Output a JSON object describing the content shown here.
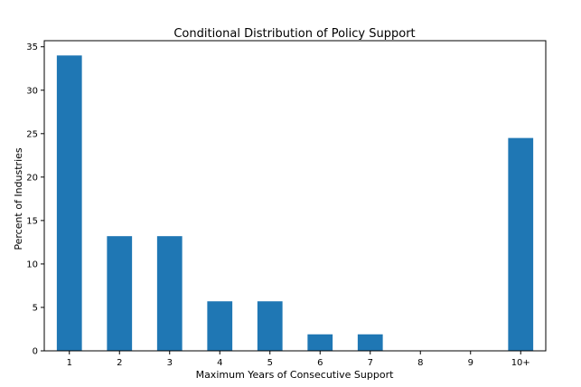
{
  "chart_data": {
    "type": "bar",
    "title": "Conditional Distribution of Policy Support",
    "xlabel": "Maximum Years of Consecutive Support",
    "ylabel": "Percent of Industries",
    "categories": [
      "1",
      "2",
      "3",
      "4",
      "5",
      "6",
      "7",
      "8",
      "9",
      "10+"
    ],
    "values": [
      34.0,
      13.2,
      13.2,
      5.7,
      5.7,
      1.9,
      1.9,
      0,
      0,
      24.5
    ],
    "ylim": [
      0,
      35.7
    ],
    "yticks": [
      "0",
      "5",
      "10",
      "15",
      "20",
      "25",
      "30",
      "35"
    ],
    "bar_color": "#1f77b4",
    "grid": false,
    "legend": "none"
  }
}
